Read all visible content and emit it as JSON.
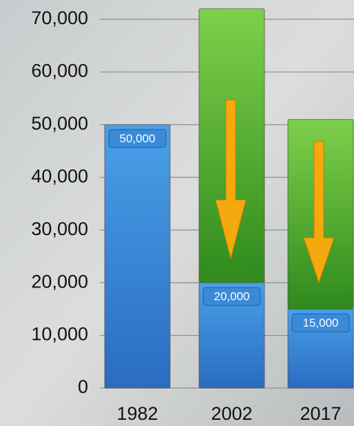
{
  "chart_data": {
    "type": "stacked-bar",
    "categories": [
      "1982",
      "2002",
      "2017"
    ],
    "series": [
      {
        "color": "#3a8ad8",
        "values": [
          50000,
          20000,
          15000
        ],
        "value_labels": [
          "50,000",
          "20,000",
          "15,000"
        ]
      },
      {
        "color": "#4aa62a",
        "values": [
          null,
          52000,
          36000
        ]
      }
    ],
    "ylim": [
      0,
      70000
    ],
    "yticks": [
      {
        "value": 0,
        "label": "0"
      },
      {
        "value": 10000,
        "label": "10,000"
      },
      {
        "value": 20000,
        "label": "20,000"
      },
      {
        "value": 30000,
        "label": "30,000"
      },
      {
        "value": 40000,
        "label": "40,000"
      },
      {
        "value": 50000,
        "label": "50,000"
      },
      {
        "value": 60000,
        "label": "60,000"
      },
      {
        "value": 70000,
        "label": "70,000"
      }
    ],
    "grid": true
  }
}
